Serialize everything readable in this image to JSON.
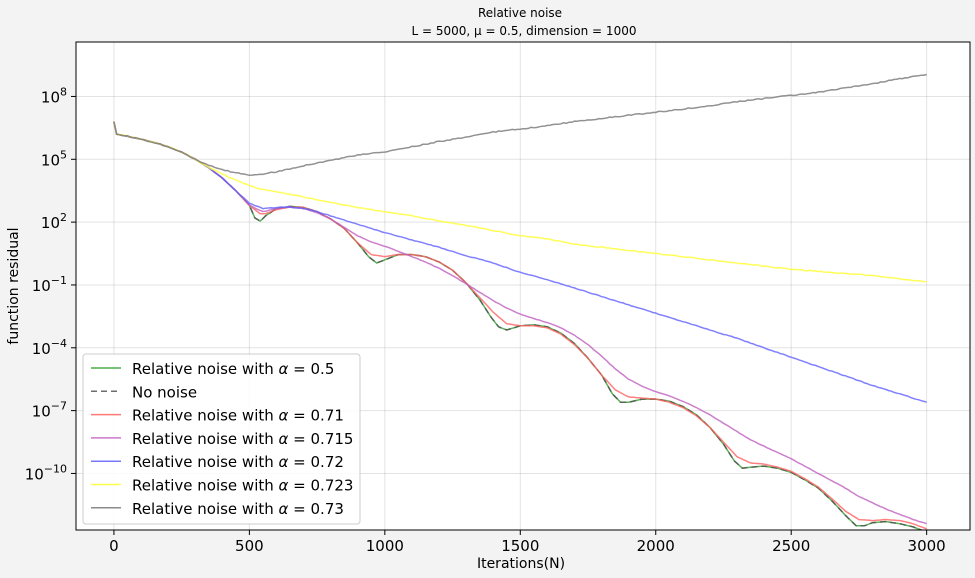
{
  "chart_data": {
    "type": "line",
    "title": "Relative noise",
    "subtitle": "L = 5000, μ = 0.5, dimension = 1000",
    "xlabel": "Iterations(N)",
    "ylabel": "function residual",
    "xlim": [
      -140,
      3160
    ],
    "ylim_log10": [
      -12.7,
      10.6
    ],
    "yscale": "log",
    "grid": true,
    "legend_position": "lower-left",
    "x_ticks": [
      0,
      500,
      1000,
      1500,
      2000,
      2500,
      3000
    ],
    "x_tick_labels": [
      "0",
      "500",
      "1000",
      "1500",
      "2000",
      "2500",
      "3000"
    ],
    "y_ticks_log10": [
      8,
      5,
      2,
      -1,
      -4,
      -7,
      -10
    ],
    "y_tick_labels": [
      {
        "base": "10",
        "exp": "8"
      },
      {
        "base": "10",
        "exp": "5"
      },
      {
        "base": "10",
        "exp": "2"
      },
      {
        "base": "10",
        "exp": "−1"
      },
      {
        "base": "10",
        "exp": "−4"
      },
      {
        "base": "10",
        "exp": "−7"
      },
      {
        "base": "10",
        "exp": "−10"
      }
    ],
    "series": [
      {
        "name": "Relative noise with α = 0.5",
        "label_prefix": "Relative noise with ",
        "alpha_symbol": "α",
        "label_value": " = 0.5",
        "color": "#2ca02c",
        "dash": "",
        "x": [
          0,
          10,
          50,
          100,
          150,
          200,
          250,
          300,
          350,
          400,
          450,
          500,
          520,
          540,
          560,
          600,
          650,
          700,
          750,
          800,
          850,
          900,
          940,
          970,
          1000,
          1050,
          1100,
          1150,
          1200,
          1250,
          1300,
          1350,
          1390,
          1420,
          1450,
          1500,
          1550,
          1600,
          1650,
          1700,
          1750,
          1800,
          1840,
          1870,
          1900,
          1950,
          2000,
          2050,
          2100,
          2150,
          2200,
          2250,
          2290,
          2320,
          2350,
          2400,
          2450,
          2500,
          2550,
          2600,
          2650,
          2700,
          2740,
          2770,
          2800,
          2850,
          2900,
          2950,
          3000
        ],
        "log10_values": [
          6.8,
          6.2,
          6.1,
          5.96,
          5.8,
          5.6,
          5.35,
          5.0,
          4.6,
          4.1,
          3.5,
          2.8,
          2.2,
          2.05,
          2.3,
          2.65,
          2.75,
          2.7,
          2.5,
          2.15,
          1.7,
          1.0,
          0.35,
          0.05,
          0.2,
          0.45,
          0.45,
          0.35,
          0.1,
          -0.3,
          -0.9,
          -1.7,
          -2.5,
          -3.0,
          -3.15,
          -2.95,
          -2.9,
          -3.0,
          -3.3,
          -3.8,
          -4.5,
          -5.3,
          -6.2,
          -6.6,
          -6.6,
          -6.45,
          -6.45,
          -6.55,
          -6.8,
          -7.2,
          -7.8,
          -8.6,
          -9.4,
          -9.75,
          -9.7,
          -9.65,
          -9.75,
          -9.95,
          -10.3,
          -10.7,
          -11.3,
          -12.0,
          -12.5,
          -12.5,
          -12.35,
          -12.3,
          -12.4,
          -12.55,
          -12.8
        ]
      },
      {
        "name": "No noise",
        "label_prefix": "No noise",
        "alpha_symbol": "",
        "label_value": "",
        "color": "#555555",
        "dash": "6,4",
        "x": [
          0,
          10,
          50,
          100,
          150,
          200,
          250,
          300,
          350,
          400,
          450,
          500,
          520,
          540,
          560,
          600,
          650,
          700,
          750,
          800,
          850,
          900,
          940,
          970,
          1000,
          1050,
          1100,
          1150,
          1200,
          1250,
          1300,
          1350,
          1390,
          1420,
          1450,
          1500,
          1550,
          1600,
          1650,
          1700,
          1750,
          1800,
          1840,
          1870,
          1900,
          1950,
          2000,
          2050,
          2100,
          2150,
          2200,
          2250,
          2290,
          2320,
          2350,
          2400,
          2450,
          2500,
          2550,
          2600,
          2650,
          2700,
          2740,
          2770,
          2800,
          2850,
          2900,
          2950,
          3000
        ],
        "log10_values": [
          6.8,
          6.2,
          6.1,
          5.96,
          5.8,
          5.6,
          5.35,
          5.0,
          4.6,
          4.1,
          3.5,
          2.8,
          2.2,
          2.05,
          2.3,
          2.65,
          2.75,
          2.7,
          2.5,
          2.15,
          1.7,
          1.0,
          0.35,
          0.05,
          0.2,
          0.45,
          0.45,
          0.35,
          0.1,
          -0.3,
          -0.9,
          -1.7,
          -2.5,
          -3.0,
          -3.15,
          -2.95,
          -2.9,
          -3.0,
          -3.3,
          -3.8,
          -4.5,
          -5.3,
          -6.2,
          -6.6,
          -6.6,
          -6.45,
          -6.45,
          -6.55,
          -6.8,
          -7.2,
          -7.8,
          -8.6,
          -9.4,
          -9.75,
          -9.7,
          -9.65,
          -9.75,
          -9.95,
          -10.3,
          -10.7,
          -11.3,
          -12.0,
          -12.5,
          -12.5,
          -12.35,
          -12.3,
          -12.4,
          -12.55,
          -12.8
        ]
      },
      {
        "name": "Relative noise with α = 0.71",
        "label_prefix": "Relative noise with ",
        "alpha_symbol": "α",
        "label_value": " = 0.71",
        "color": "#ff6060",
        "dash": "",
        "x": [
          0,
          10,
          50,
          100,
          150,
          200,
          250,
          300,
          350,
          400,
          450,
          500,
          540,
          560,
          600,
          650,
          700,
          750,
          800,
          850,
          900,
          950,
          1000,
          1050,
          1100,
          1150,
          1200,
          1250,
          1300,
          1350,
          1400,
          1450,
          1500,
          1550,
          1600,
          1650,
          1700,
          1750,
          1800,
          1850,
          1900,
          1950,
          2000,
          2050,
          2100,
          2150,
          2200,
          2250,
          2300,
          2350,
          2400,
          2450,
          2500,
          2550,
          2600,
          2650,
          2700,
          2750,
          2800,
          2850,
          2900,
          2950,
          3000
        ],
        "log10_values": [
          6.8,
          6.2,
          6.1,
          5.96,
          5.8,
          5.6,
          5.35,
          5.0,
          4.6,
          4.1,
          3.5,
          2.8,
          2.4,
          2.4,
          2.6,
          2.72,
          2.7,
          2.5,
          2.15,
          1.7,
          1.0,
          0.45,
          0.35,
          0.45,
          0.45,
          0.35,
          0.1,
          -0.3,
          -0.9,
          -1.6,
          -2.3,
          -2.85,
          -2.95,
          -2.95,
          -3.05,
          -3.35,
          -3.85,
          -4.5,
          -5.3,
          -6.0,
          -6.35,
          -6.4,
          -6.45,
          -6.6,
          -6.85,
          -7.25,
          -7.8,
          -8.5,
          -9.2,
          -9.5,
          -9.55,
          -9.7,
          -9.9,
          -10.25,
          -10.65,
          -11.2,
          -11.8,
          -12.2,
          -12.25,
          -12.2,
          -12.25,
          -12.4,
          -12.65
        ]
      },
      {
        "name": "Relative noise with α = 0.715",
        "label_prefix": "Relative noise with ",
        "alpha_symbol": "α",
        "label_value": " = 0.715",
        "color": "#bf5fbf",
        "dash": "",
        "x": [
          0,
          10,
          50,
          100,
          150,
          200,
          250,
          300,
          350,
          400,
          450,
          500,
          550,
          600,
          650,
          700,
          750,
          800,
          850,
          900,
          950,
          1000,
          1050,
          1100,
          1150,
          1200,
          1250,
          1300,
          1350,
          1400,
          1450,
          1500,
          1550,
          1600,
          1650,
          1700,
          1750,
          1800,
          1850,
          1900,
          1950,
          2000,
          2050,
          2100,
          2150,
          2200,
          2250,
          2300,
          2350,
          2400,
          2450,
          2500,
          2550,
          2600,
          2650,
          2700,
          2750,
          2800,
          2850,
          2900,
          2950,
          3000
        ],
        "log10_values": [
          6.8,
          6.2,
          6.1,
          5.96,
          5.8,
          5.6,
          5.35,
          5.0,
          4.6,
          4.1,
          3.5,
          2.8,
          2.5,
          2.65,
          2.72,
          2.65,
          2.45,
          2.15,
          1.75,
          1.35,
          1.05,
          0.85,
          0.6,
          0.35,
          0.1,
          -0.2,
          -0.55,
          -0.95,
          -1.35,
          -1.75,
          -2.1,
          -2.4,
          -2.6,
          -2.8,
          -3.05,
          -3.4,
          -3.85,
          -4.4,
          -5.0,
          -5.5,
          -5.85,
          -6.1,
          -6.3,
          -6.55,
          -6.85,
          -7.2,
          -7.6,
          -8.0,
          -8.4,
          -8.7,
          -9.0,
          -9.3,
          -9.65,
          -10.0,
          -10.35,
          -10.7,
          -11.1,
          -11.4,
          -11.7,
          -11.95,
          -12.2,
          -12.4
        ]
      },
      {
        "name": "Relative noise with α = 0.72",
        "label_prefix": "Relative noise with ",
        "alpha_symbol": "α",
        "label_value": " = 0.72",
        "color": "#6060ff",
        "dash": "",
        "x": [
          0,
          10,
          50,
          100,
          150,
          200,
          250,
          300,
          350,
          400,
          450,
          500,
          550,
          600,
          650,
          700,
          750,
          800,
          850,
          900,
          950,
          1000,
          1100,
          1200,
          1300,
          1400,
          1500,
          1600,
          1700,
          1800,
          1900,
          2000,
          2100,
          2200,
          2300,
          2400,
          2500,
          2600,
          2700,
          2800,
          2900,
          3000
        ],
        "log10_values": [
          6.8,
          6.2,
          6.1,
          5.96,
          5.8,
          5.6,
          5.35,
          5.0,
          4.6,
          4.1,
          3.5,
          2.9,
          2.65,
          2.7,
          2.72,
          2.65,
          2.5,
          2.3,
          2.1,
          1.9,
          1.7,
          1.5,
          1.15,
          0.8,
          0.4,
          0.05,
          -0.4,
          -0.75,
          -1.15,
          -1.55,
          -1.95,
          -2.35,
          -2.75,
          -3.15,
          -3.55,
          -4.0,
          -4.45,
          -4.9,
          -5.35,
          -5.8,
          -6.2,
          -6.6
        ]
      },
      {
        "name": "Relative noise with α = 0.723",
        "label_prefix": "Relative noise with ",
        "alpha_symbol": "α",
        "label_value": " = 0.723",
        "color": "#ffff30",
        "dash": "",
        "x": [
          0,
          10,
          50,
          100,
          150,
          200,
          250,
          300,
          350,
          400,
          450,
          500,
          550,
          600,
          700,
          800,
          900,
          1000,
          1100,
          1200,
          1300,
          1400,
          1500,
          1600,
          1700,
          1800,
          1900,
          2000,
          2100,
          2200,
          2300,
          2400,
          2500,
          2600,
          2700,
          2800,
          2900,
          3000
        ],
        "log10_values": [
          6.8,
          6.2,
          6.1,
          5.96,
          5.8,
          5.6,
          5.35,
          5.0,
          4.6,
          4.3,
          4.0,
          3.75,
          3.55,
          3.45,
          3.2,
          2.95,
          2.7,
          2.5,
          2.3,
          2.05,
          1.85,
          1.6,
          1.35,
          1.2,
          0.95,
          0.8,
          0.65,
          0.5,
          0.35,
          0.2,
          0.05,
          -0.1,
          -0.25,
          -0.35,
          -0.45,
          -0.55,
          -0.7,
          -0.85
        ]
      },
      {
        "name": "Relative noise with α = 0.73",
        "label_prefix": "Relative noise with ",
        "alpha_symbol": "α",
        "label_value": " = 0.73",
        "color": "#777777",
        "dash": "",
        "x": [
          0,
          10,
          50,
          100,
          150,
          200,
          250,
          300,
          350,
          400,
          450,
          500,
          550,
          600,
          650,
          700,
          800,
          900,
          1000,
          1100,
          1200,
          1300,
          1400,
          1500,
          1600,
          1700,
          1800,
          1900,
          2000,
          2100,
          2200,
          2300,
          2400,
          2500,
          2600,
          2700,
          2800,
          2900,
          3000
        ],
        "log10_values": [
          6.8,
          6.2,
          6.1,
          5.96,
          5.8,
          5.6,
          5.35,
          5.0,
          4.7,
          4.5,
          4.35,
          4.25,
          4.3,
          4.4,
          4.55,
          4.7,
          4.95,
          5.2,
          5.35,
          5.6,
          5.85,
          6.05,
          6.3,
          6.45,
          6.6,
          6.8,
          6.95,
          7.1,
          7.25,
          7.4,
          7.55,
          7.75,
          7.9,
          8.05,
          8.2,
          8.4,
          8.6,
          8.85,
          9.05
        ]
      }
    ]
  }
}
